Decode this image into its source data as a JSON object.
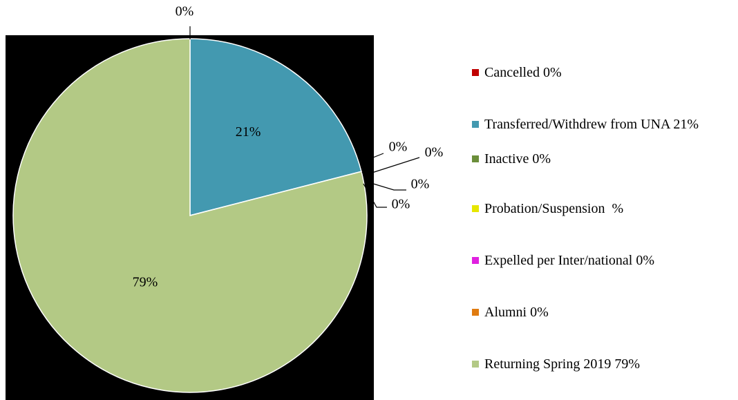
{
  "chart_data": {
    "type": "pie",
    "categories": [
      "Cancelled 0%",
      "Transferred/Withdrew from UNA 21%",
      "Inactive 0%",
      "Probation/Suspension  %",
      "Expelled per Inter/national 0%",
      "Alumni 0%",
      "Returning Spring 2019 79%"
    ],
    "values": [
      0,
      21,
      0,
      0,
      0,
      0,
      79
    ],
    "value_labels": [
      "0%",
      "21%",
      "0%",
      "0%",
      "0%",
      "0%",
      "79%"
    ],
    "colors": [
      "#c00000",
      "#4399b0",
      "#6b8e3a",
      "#e6e600",
      "#e020e0",
      "#e07b10",
      "#b3c985"
    ],
    "legend": "right"
  }
}
